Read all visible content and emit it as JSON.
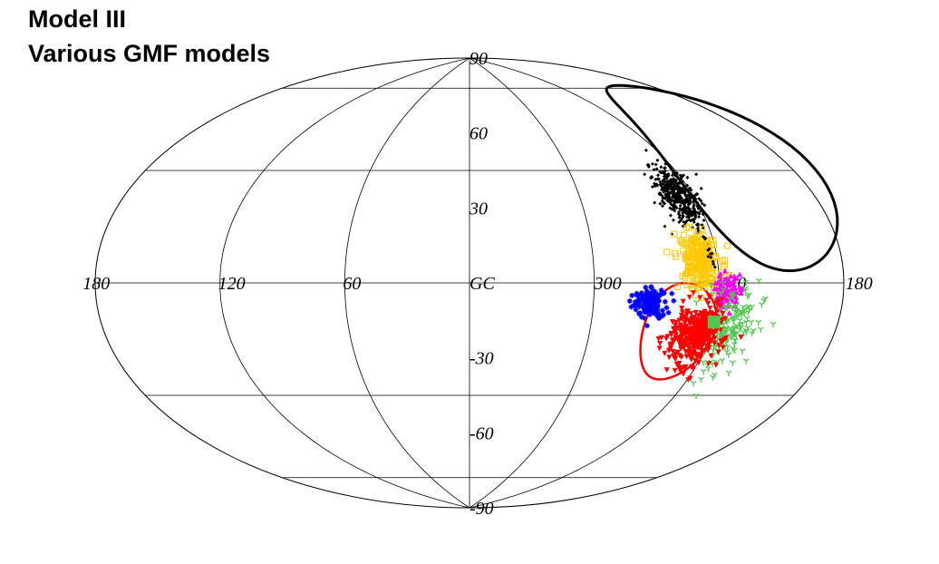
{
  "title_line1": "Model III",
  "title_line2": "Various GMF models",
  "chart_data": {
    "type": "scatter",
    "projection": "Aitoff (Galactic coordinates)",
    "lat_labels": [
      "90",
      "60",
      "30",
      "-30",
      "-60",
      "-90"
    ],
    "lon_labels": [
      "180",
      "120",
      "60",
      "GC",
      "300",
      "240",
      "180"
    ],
    "lat_gridlines": [
      -60,
      -30,
      0,
      30,
      60
    ],
    "lon_meridians": [
      -120,
      -60,
      0,
      60,
      120
    ],
    "source_contour": {
      "color": "#000000",
      "center": [
        -155,
        35
      ],
      "radius_deg": 30
    },
    "source_circle": {
      "color": "#ff0000",
      "center": [
        -104,
        -17
      ],
      "radius_deg": 17
    },
    "series": [
      {
        "color": "#000000",
        "marker": "diamond-small",
        "center": [
          -112,
          30
        ],
        "count": 380,
        "spread": [
          5,
          5
        ]
      },
      {
        "color": "#ffc800",
        "marker": "square-open",
        "center": [
          -112,
          7
        ],
        "count": 220,
        "spread": [
          5,
          5
        ]
      },
      {
        "color": "#0000ff",
        "marker": "star",
        "center": [
          -87,
          -7
        ],
        "count": 150,
        "spread": [
          4,
          3
        ]
      },
      {
        "color": "#ff00ff",
        "marker": "triangle-up",
        "center": [
          -125,
          -3
        ],
        "count": 90,
        "spread": [
          3,
          3
        ]
      },
      {
        "color": "#50c850",
        "marker": "tri-star",
        "center": [
          -128,
          -15
        ],
        "count": 180,
        "spread": [
          7,
          7
        ]
      },
      {
        "color": "#ff0000",
        "marker": "triangle-down",
        "center": [
          -113,
          -18
        ],
        "count": 380,
        "spread": [
          6,
          5
        ]
      }
    ],
    "highlight_square": {
      "color": "#50c850",
      "position": [
        -120,
        -13
      ]
    }
  }
}
